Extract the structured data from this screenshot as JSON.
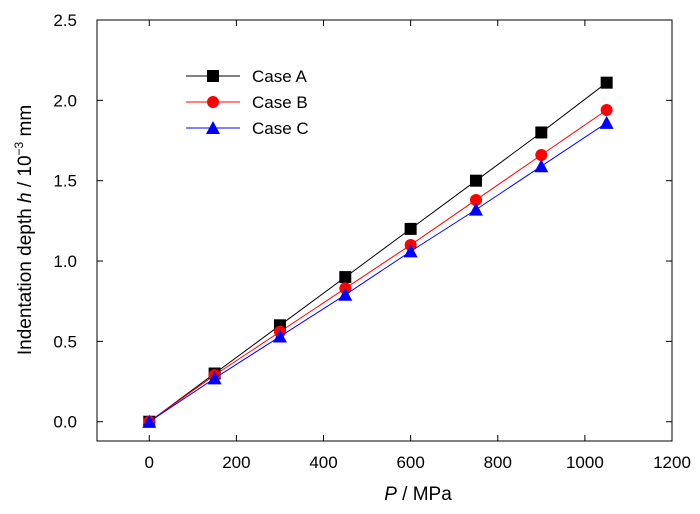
{
  "chart_data": {
    "type": "scatter",
    "x_label": {
      "symbol": "P",
      "unit": " / MPa"
    },
    "y_label": {
      "prefix": "Indentation depth ",
      "symbol": "h",
      "unit_pre": " / 10",
      "unit_exp": "−3",
      "unit_post": " mm"
    },
    "x_ticks": [
      "0",
      "200",
      "400",
      "600",
      "800",
      "1000",
      "1200"
    ],
    "y_ticks": [
      "0.0",
      "0.5",
      "1.0",
      "1.5",
      "2.0",
      "2.5"
    ],
    "xlim": [
      -120,
      1200
    ],
    "ylim": [
      -0.12,
      2.5
    ],
    "x": [
      0,
      150,
      300,
      450,
      600,
      750,
      900,
      1050
    ],
    "series": [
      {
        "name": "Case A",
        "marker": "square",
        "color": "#000000",
        "values": [
          0,
          0.3,
          0.6,
          0.9,
          1.2,
          1.5,
          1.8,
          2.11
        ]
      },
      {
        "name": "Case B",
        "marker": "circle",
        "color": "#ff0000",
        "values": [
          0,
          0.29,
          0.56,
          0.83,
          1.1,
          1.38,
          1.66,
          1.94
        ]
      },
      {
        "name": "Case C",
        "marker": "triangle",
        "color": "#0000ff",
        "values": [
          0,
          0.27,
          0.53,
          0.79,
          1.06,
          1.32,
          1.59,
          1.86
        ]
      }
    ],
    "legend_position": "top-left",
    "grid": false
  }
}
